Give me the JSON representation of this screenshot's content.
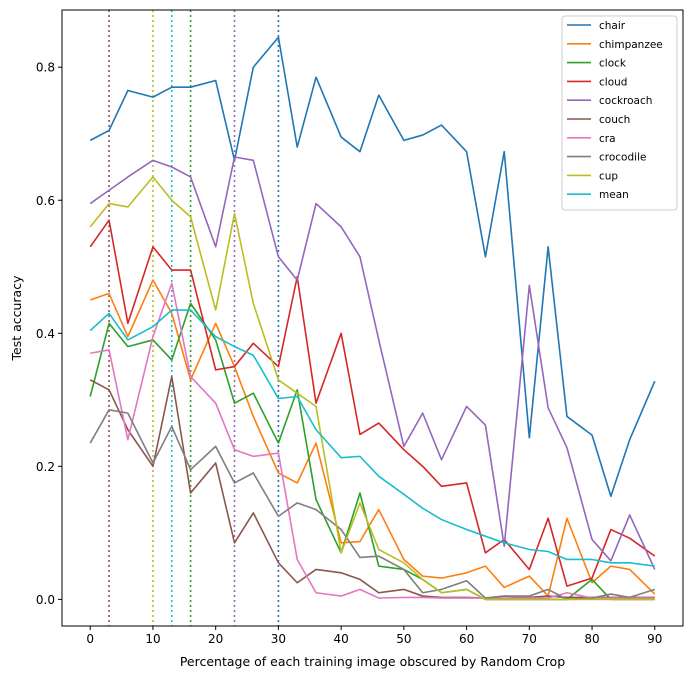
{
  "chart_data": {
    "type": "line",
    "title": "",
    "xlabel": "Percentage of each training image obscured by Random Crop",
    "ylabel": "Test accuracy",
    "xlim": [
      -4.5,
      94.5
    ],
    "ylim": [
      -0.04,
      0.886
    ],
    "xticks": [
      0,
      10,
      20,
      30,
      40,
      50,
      60,
      70,
      80,
      90
    ],
    "yticks": [
      0.0,
      0.2,
      0.4,
      0.6,
      0.8
    ],
    "ytick_labels": [
      "0.0",
      "0.2",
      "0.4",
      "0.6",
      "0.8"
    ],
    "legend_position": "top-right",
    "x": [
      0,
      3,
      6,
      10,
      13,
      16,
      20,
      23,
      26,
      30,
      33,
      36,
      40,
      43,
      46,
      50,
      53,
      56,
      60,
      63,
      66,
      70,
      73,
      76,
      80,
      83,
      86,
      90
    ],
    "vlines": [
      {
        "x": 3,
        "color": "#8c564b"
      },
      {
        "x": 10,
        "color": "#bcbd22"
      },
      {
        "x": 13,
        "color": "#17becf"
      },
      {
        "x": 16,
        "color": "#2ca02c"
      },
      {
        "x": 23,
        "color": "#9467bd"
      },
      {
        "x": 30,
        "color": "#1f77b4"
      }
    ],
    "series": [
      {
        "name": "chair",
        "color": "#1f77b4",
        "values": [
          0.69,
          0.705,
          0.765,
          0.755,
          0.77,
          0.77,
          0.78,
          0.66,
          0.8,
          0.845,
          0.68,
          0.785,
          0.695,
          0.673,
          0.758,
          0.69,
          0.698,
          0.713,
          0.673,
          0.515,
          0.673,
          0.243,
          0.53,
          0.275,
          0.247,
          0.155,
          0.24,
          0.328
        ]
      },
      {
        "name": "chimpanzee",
        "color": "#ff7f0e",
        "values": [
          0.45,
          0.46,
          0.395,
          0.48,
          0.43,
          0.33,
          0.415,
          0.35,
          0.275,
          0.19,
          0.175,
          0.235,
          0.085,
          0.087,
          0.135,
          0.06,
          0.035,
          0.032,
          0.04,
          0.05,
          0.018,
          0.035,
          0.005,
          0.122,
          0.025,
          0.05,
          0.045,
          0.008
        ]
      },
      {
        "name": "clock",
        "color": "#2ca02c",
        "values": [
          0.305,
          0.415,
          0.38,
          0.39,
          0.36,
          0.445,
          0.39,
          0.295,
          0.31,
          0.235,
          0.315,
          0.15,
          0.07,
          0.16,
          0.05,
          0.045,
          0.03,
          0.01,
          0.015,
          0.0,
          0.0,
          0.0,
          0.0,
          0.0,
          0.03,
          0.0,
          0.0,
          0.0
        ]
      },
      {
        "name": "cloud",
        "color": "#d62728",
        "values": [
          0.53,
          0.57,
          0.415,
          0.53,
          0.495,
          0.495,
          0.345,
          0.35,
          0.385,
          0.35,
          0.485,
          0.295,
          0.4,
          0.248,
          0.265,
          0.225,
          0.2,
          0.17,
          0.175,
          0.07,
          0.09,
          0.045,
          0.122,
          0.02,
          0.032,
          0.105,
          0.092,
          0.065
        ]
      },
      {
        "name": "cockroach",
        "color": "#9467bd",
        "values": [
          0.595,
          0.615,
          0.635,
          0.66,
          0.65,
          0.635,
          0.53,
          0.665,
          0.66,
          0.515,
          0.48,
          0.595,
          0.56,
          0.515,
          0.39,
          0.23,
          0.28,
          0.21,
          0.29,
          0.262,
          0.08,
          0.472,
          0.288,
          0.228,
          0.09,
          0.058,
          0.127,
          0.045
        ]
      },
      {
        "name": "couch",
        "color": "#8c564b",
        "values": [
          0.33,
          0.315,
          0.255,
          0.2,
          0.335,
          0.16,
          0.205,
          0.085,
          0.13,
          0.055,
          0.025,
          0.045,
          0.04,
          0.03,
          0.01,
          0.015,
          0.005,
          0.003,
          0.003,
          0.002,
          0.005,
          0.003,
          0.005,
          0.003,
          0.003,
          0.003,
          0.003,
          0.003
        ]
      },
      {
        "name": "cra",
        "color": "#e377c2",
        "values": [
          0.37,
          0.375,
          0.24,
          0.395,
          0.475,
          0.335,
          0.295,
          0.225,
          0.215,
          0.22,
          0.06,
          0.01,
          0.005,
          0.015,
          0.002,
          0.003,
          0.003,
          0.002,
          0.002,
          0.002,
          0.002,
          0.002,
          0.002,
          0.01,
          0.002,
          0.002,
          0.002,
          0.002
        ]
      },
      {
        "name": "crocodile",
        "color": "#7f7f7f",
        "values": [
          0.235,
          0.285,
          0.28,
          0.205,
          0.26,
          0.195,
          0.23,
          0.175,
          0.19,
          0.125,
          0.145,
          0.135,
          0.105,
          0.063,
          0.065,
          0.045,
          0.01,
          0.015,
          0.028,
          0.002,
          0.005,
          0.005,
          0.015,
          0.0,
          0.002,
          0.008,
          0.003,
          0.015
        ]
      },
      {
        "name": "cup",
        "color": "#bcbd22",
        "values": [
          0.56,
          0.595,
          0.59,
          0.635,
          0.6,
          0.575,
          0.435,
          0.58,
          0.445,
          0.33,
          0.31,
          0.29,
          0.07,
          0.145,
          0.075,
          0.055,
          0.03,
          0.01,
          0.015,
          0.0,
          0.0,
          0.0,
          0.0,
          0.0,
          0.0,
          0.0,
          0.0,
          0.0
        ]
      },
      {
        "name": "mean",
        "color": "#17becf",
        "values": [
          0.404,
          0.43,
          0.39,
          0.41,
          0.435,
          0.435,
          0.395,
          0.38,
          0.367,
          0.302,
          0.305,
          0.255,
          0.213,
          0.215,
          0.185,
          0.158,
          0.137,
          0.12,
          0.105,
          0.095,
          0.085,
          0.075,
          0.072,
          0.06,
          0.06,
          0.055,
          0.055,
          0.05
        ]
      }
    ]
  }
}
